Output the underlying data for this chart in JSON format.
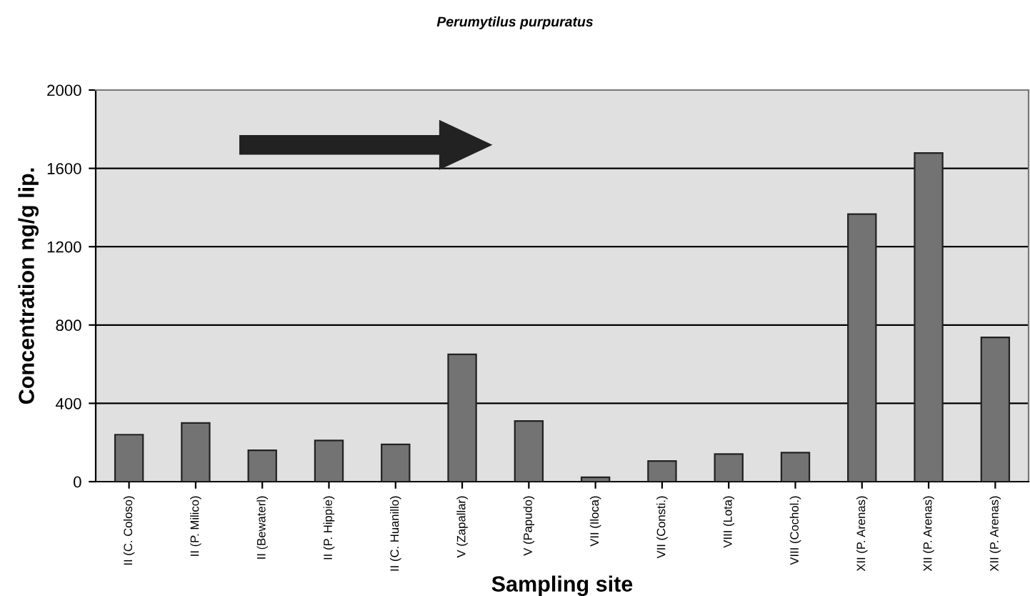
{
  "chart_data": {
    "type": "bar",
    "title": "Perumytilus purpuratus",
    "xlabel": "Sampling site",
    "ylabel": "Concentration ng/g lip.",
    "categories": [
      "II (C. Coloso)",
      "II (P. Milico)",
      "II (Bewaterl)",
      "II (P. Hippie)",
      "II (C. Huanillo)",
      "V (Zapallar)",
      "V (Papudo)",
      "VII (Iloca)",
      "VII (Consti.)",
      "VIII (Lota)",
      "VIII (Cochol.)",
      "XII (P. Arenas)",
      "XII (P. Arenas)",
      "XII (P. Arenas)"
    ],
    "values": [
      240,
      300,
      160,
      210,
      190,
      650,
      310,
      22,
      105,
      141,
      148,
      1366,
      1678,
      737
    ],
    "color": "#737373",
    "ylim": [
      0,
      2000
    ],
    "yticks": [
      0,
      400,
      800,
      1200,
      1600,
      2000
    ],
    "grid": "y",
    "legend": false
  }
}
